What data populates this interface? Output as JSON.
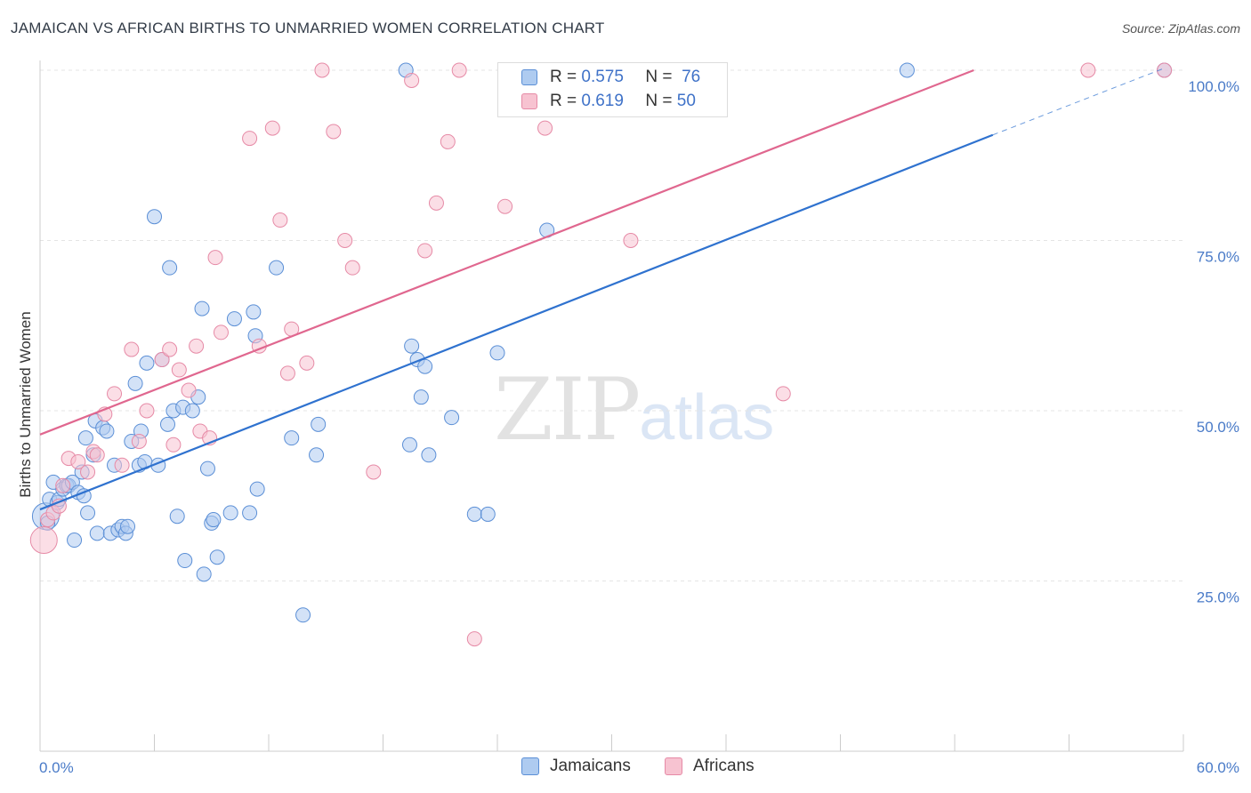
{
  "title": "JAMAICAN VS AFRICAN BIRTHS TO UNMARRIED WOMEN CORRELATION CHART",
  "source": "Source: ZipAtlas.com",
  "watermark": {
    "zip": "ZIP",
    "atlas": "atlas"
  },
  "legend": {
    "r_label": "R =",
    "n_label": "N =",
    "rows": [
      {
        "r": "0.575",
        "n": "76"
      },
      {
        "r": "0.619",
        "n": "50"
      }
    ]
  },
  "bottom_legend": [
    "Jamaicans",
    "Africans"
  ],
  "colors": {
    "blue_fill": "#aecbf0",
    "blue_stroke": "#5b8fd6",
    "blue_line": "#2f72cf",
    "pink_fill": "#f7c3d1",
    "pink_stroke": "#e68aa6",
    "pink_line": "#e0678f",
    "tick": "#4a7bc8",
    "grid": "#e4e4e4"
  },
  "chart_data": {
    "type": "scatter",
    "title": "JAMAICAN VS AFRICAN BIRTHS TO UNMARRIED WOMEN CORRELATION CHART",
    "xlabel": "",
    "ylabel": "Births to Unmarried Women",
    "xlim": [
      0,
      60
    ],
    "ylim": [
      0,
      103
    ],
    "x_tick_labels": [
      "0.0%",
      "60.0%"
    ],
    "y_tick_labels": [
      "25.0%",
      "50.0%",
      "75.0%",
      "100.0%"
    ],
    "y_ticks": [
      25,
      50,
      75,
      100
    ],
    "grid": true,
    "legend_position": "top-center",
    "series": [
      {
        "name": "Jamaicans",
        "R": 0.575,
        "N": 76,
        "trend": {
          "x0": 0,
          "y0": 35.5,
          "x1": 50,
          "y1": 90.5,
          "dashed_to_x": 59,
          "dashed_to_y": 100.3
        },
        "points": [
          [
            0.3,
            34.5
          ],
          [
            0.4,
            33.5
          ],
          [
            0.5,
            37.0
          ],
          [
            0.7,
            39.5
          ],
          [
            0.9,
            36.5
          ],
          [
            1.0,
            37.0
          ],
          [
            1.2,
            38.5
          ],
          [
            1.4,
            39.0
          ],
          [
            1.5,
            39.0
          ],
          [
            1.7,
            39.5
          ],
          [
            1.8,
            31.0
          ],
          [
            2.0,
            38.0
          ],
          [
            2.2,
            41.0
          ],
          [
            2.3,
            37.5
          ],
          [
            2.4,
            46.0
          ],
          [
            2.5,
            35.0
          ],
          [
            2.8,
            43.5
          ],
          [
            2.9,
            48.5
          ],
          [
            3.0,
            32.0
          ],
          [
            3.3,
            47.5
          ],
          [
            3.5,
            47.0
          ],
          [
            3.7,
            32.0
          ],
          [
            3.9,
            42.0
          ],
          [
            4.1,
            32.5
          ],
          [
            4.3,
            33.0
          ],
          [
            4.5,
            32.0
          ],
          [
            4.6,
            33.0
          ],
          [
            4.8,
            45.5
          ],
          [
            5.0,
            54.0
          ],
          [
            5.2,
            42.0
          ],
          [
            5.3,
            47.0
          ],
          [
            5.5,
            42.5
          ],
          [
            5.6,
            57.0
          ],
          [
            6.0,
            78.5
          ],
          [
            6.2,
            42.0
          ],
          [
            6.4,
            57.5
          ],
          [
            6.7,
            48.0
          ],
          [
            6.8,
            71.0
          ],
          [
            7.0,
            50.0
          ],
          [
            7.2,
            34.5
          ],
          [
            7.5,
            50.5
          ],
          [
            7.6,
            28.0
          ],
          [
            8.0,
            50.0
          ],
          [
            8.3,
            52.0
          ],
          [
            8.5,
            65.0
          ],
          [
            8.6,
            26.0
          ],
          [
            8.8,
            41.5
          ],
          [
            9.0,
            33.5
          ],
          [
            9.1,
            34.0
          ],
          [
            9.3,
            28.5
          ],
          [
            10.0,
            35.0
          ],
          [
            10.2,
            63.5
          ],
          [
            11.0,
            35.0
          ],
          [
            11.2,
            64.5
          ],
          [
            11.3,
            61.0
          ],
          [
            11.4,
            38.5
          ],
          [
            12.4,
            71.0
          ],
          [
            13.2,
            46.0
          ],
          [
            13.8,
            20.0
          ],
          [
            14.5,
            43.5
          ],
          [
            14.6,
            48.0
          ],
          [
            19.2,
            100.0
          ],
          [
            19.4,
            45.0
          ],
          [
            19.5,
            59.5
          ],
          [
            19.8,
            57.5
          ],
          [
            20.0,
            52.0
          ],
          [
            20.2,
            56.5
          ],
          [
            20.4,
            43.5
          ],
          [
            21.6,
            49.0
          ],
          [
            22.8,
            34.8
          ],
          [
            23.5,
            34.8
          ],
          [
            24.0,
            58.5
          ],
          [
            26.6,
            76.5
          ],
          [
            35.0,
            100.0
          ],
          [
            45.5,
            100.0
          ],
          [
            59.0,
            100.0
          ]
        ]
      },
      {
        "name": "Africans",
        "R": 0.619,
        "N": 50,
        "trend": {
          "x0": 0,
          "y0": 46.5,
          "x1": 49,
          "y1": 100.0
        },
        "points": [
          [
            0.2,
            31.0
          ],
          [
            0.4,
            34.0
          ],
          [
            0.7,
            35.0
          ],
          [
            1.0,
            36.0
          ],
          [
            1.2,
            39.0
          ],
          [
            1.5,
            43.0
          ],
          [
            2.0,
            42.5
          ],
          [
            2.5,
            41.0
          ],
          [
            2.8,
            44.0
          ],
          [
            3.0,
            43.5
          ],
          [
            3.4,
            49.5
          ],
          [
            3.9,
            52.5
          ],
          [
            4.3,
            42.0
          ],
          [
            4.8,
            59.0
          ],
          [
            5.2,
            45.5
          ],
          [
            5.6,
            50.0
          ],
          [
            6.4,
            57.5
          ],
          [
            6.8,
            59.0
          ],
          [
            7.0,
            45.0
          ],
          [
            7.3,
            56.0
          ],
          [
            7.8,
            53.0
          ],
          [
            8.2,
            59.5
          ],
          [
            8.4,
            47.0
          ],
          [
            8.9,
            46.0
          ],
          [
            9.2,
            72.5
          ],
          [
            9.5,
            61.5
          ],
          [
            11.0,
            90.0
          ],
          [
            11.5,
            59.5
          ],
          [
            12.2,
            91.5
          ],
          [
            12.6,
            78.0
          ],
          [
            13.0,
            55.5
          ],
          [
            13.2,
            62.0
          ],
          [
            14.0,
            57.0
          ],
          [
            14.8,
            100.0
          ],
          [
            15.4,
            91.0
          ],
          [
            16.0,
            75.0
          ],
          [
            16.4,
            71.0
          ],
          [
            17.5,
            41.0
          ],
          [
            19.5,
            98.5
          ],
          [
            20.2,
            73.5
          ],
          [
            20.8,
            80.5
          ],
          [
            21.4,
            89.5
          ],
          [
            22.0,
            100.0
          ],
          [
            22.8,
            16.5
          ],
          [
            24.4,
            80.0
          ],
          [
            26.5,
            91.5
          ],
          [
            31.0,
            75.0
          ],
          [
            39.0,
            52.5
          ],
          [
            55.0,
            100.0
          ],
          [
            59.0,
            100.0
          ]
        ]
      }
    ]
  }
}
